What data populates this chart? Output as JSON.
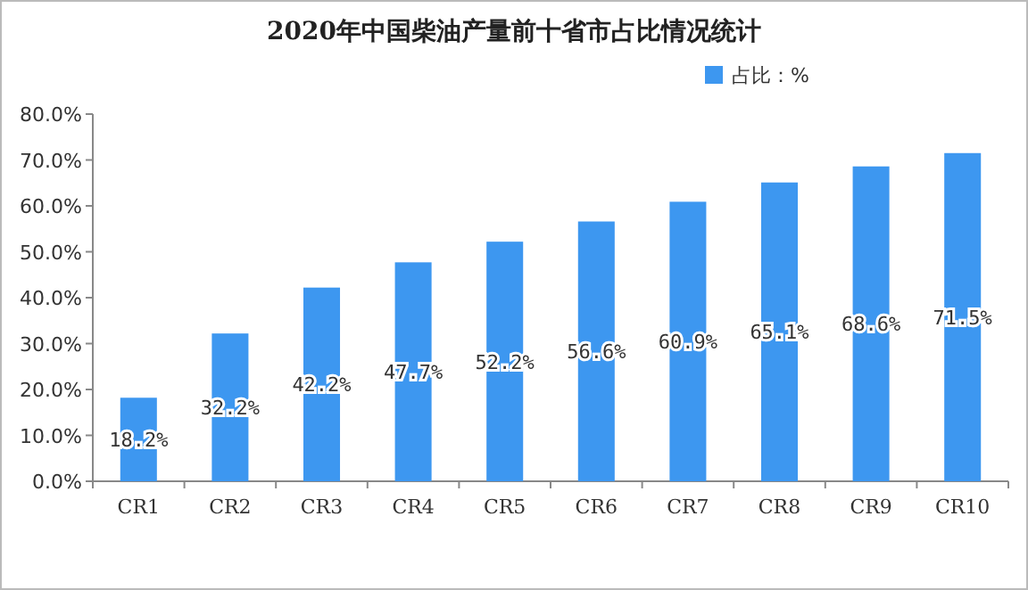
{
  "chart_data": {
    "type": "bar",
    "title": "2020年中国柴油产量前十省市占比情况统计",
    "categories": [
      "CR1",
      "CR2",
      "CR3",
      "CR4",
      "CR5",
      "CR6",
      "CR7",
      "CR8",
      "CR9",
      "CR10"
    ],
    "series": [
      {
        "name": "占比：%",
        "color": "#3d97f0",
        "values": [
          18.2,
          32.2,
          42.2,
          47.7,
          52.2,
          56.6,
          60.9,
          65.1,
          68.6,
          71.5
        ],
        "value_labels": [
          "18.2%",
          "32.2%",
          "42.2%",
          "47.7%",
          "52.2%",
          "56.6%",
          "60.9%",
          "65.1%",
          "68.6%",
          "71.5%"
        ]
      }
    ],
    "ylim": [
      0,
      80
    ],
    "yticks": [
      {
        "value": 0,
        "label": "0.0%"
      },
      {
        "value": 10,
        "label": "10.0%"
      },
      {
        "value": 20,
        "label": "20.0%"
      },
      {
        "value": 30,
        "label": "30.0%"
      },
      {
        "value": 40,
        "label": "40.0%"
      },
      {
        "value": 50,
        "label": "50.0%"
      },
      {
        "value": 60,
        "label": "60.0%"
      },
      {
        "value": 70,
        "label": "70.0%"
      },
      {
        "value": 80,
        "label": "80.0%"
      }
    ],
    "legend": "top right"
  }
}
